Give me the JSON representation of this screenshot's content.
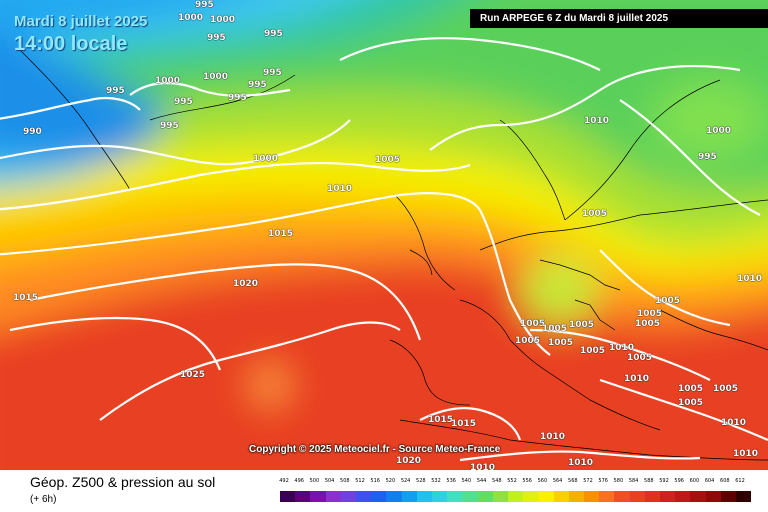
{
  "header": {
    "date": "Mardi 8 juillet 2025",
    "time": "14:00 locale",
    "run": "Run ARPEGE 6 Z du Mardi 8 juillet 2025"
  },
  "copyright": "Copyright © 2025 Meteociel.fr - Source Meteo-France",
  "footer": {
    "title": "Géop. Z500 & pression au sol",
    "subtitle": "(+ 6h)"
  },
  "colors": {
    "deep_blue": "#1f5fd6",
    "cyan": "#40c8f0",
    "green": "#5ad05a",
    "yellow": "#f5f000",
    "orange": "#ff8a20",
    "red": "#e83020"
  },
  "scale": {
    "ticks": [
      "492",
      "496",
      "500",
      "504",
      "508",
      "512",
      "516",
      "520",
      "524",
      "528",
      "532",
      "536",
      "540",
      "544",
      "548",
      "552",
      "556",
      "560",
      "564",
      "568",
      "572",
      "576",
      "580",
      "584",
      "588",
      "592",
      "596",
      "600",
      "604",
      "608",
      "612"
    ],
    "colors": [
      "#3a0050",
      "#5a0080",
      "#7a10b0",
      "#8a30d0",
      "#7040e0",
      "#4050f0",
      "#2060f0",
      "#1080f0",
      "#10a0f0",
      "#20c0f0",
      "#30d0e0",
      "#40e0c0",
      "#50e090",
      "#60e060",
      "#90e040",
      "#c0f020",
      "#e0f010",
      "#f8f000",
      "#f8d000",
      "#f8b000",
      "#f89000",
      "#f87020",
      "#f05020",
      "#e84020",
      "#e03020",
      "#d02020",
      "#c01818",
      "#a81010",
      "#900808",
      "#600000",
      "#300000"
    ]
  },
  "isobars": [
    {
      "v": "995",
      "x": 195,
      "y": -5
    },
    {
      "v": "1000",
      "x": 178,
      "y": 13
    },
    {
      "v": "1000",
      "x": 210,
      "y": 15
    },
    {
      "v": "995",
      "x": 207,
      "y": 33
    },
    {
      "v": "995",
      "x": 264,
      "y": 29
    },
    {
      "v": "990",
      "x": 23,
      "y": 127
    },
    {
      "v": "995",
      "x": 106,
      "y": 86
    },
    {
      "v": "1000",
      "x": 155,
      "y": 76
    },
    {
      "v": "1000",
      "x": 203,
      "y": 72
    },
    {
      "v": "995",
      "x": 174,
      "y": 97
    },
    {
      "v": "995",
      "x": 263,
      "y": 68
    },
    {
      "v": "995",
      "x": 248,
      "y": 80
    },
    {
      "v": "995",
      "x": 228,
      "y": 93
    },
    {
      "v": "995",
      "x": 160,
      "y": 121
    },
    {
      "v": "1000",
      "x": 253,
      "y": 154
    },
    {
      "v": "1005",
      "x": 375,
      "y": 155
    },
    {
      "v": "1010",
      "x": 327,
      "y": 184
    },
    {
      "v": "1015",
      "x": 268,
      "y": 229
    },
    {
      "v": "1020",
      "x": 233,
      "y": 279
    },
    {
      "v": "1015",
      "x": 13,
      "y": 293
    },
    {
      "v": "1025",
      "x": 180,
      "y": 370
    },
    {
      "v": "1010",
      "x": 584,
      "y": 116
    },
    {
      "v": "1000",
      "x": 706,
      "y": 126
    },
    {
      "v": "995",
      "x": 698,
      "y": 152
    },
    {
      "v": "1005",
      "x": 582,
      "y": 209
    },
    {
      "v": "1010",
      "x": 737,
      "y": 274
    },
    {
      "v": "1005",
      "x": 655,
      "y": 296
    },
    {
      "v": "1005",
      "x": 637,
      "y": 309
    },
    {
      "v": "1005",
      "x": 635,
      "y": 319
    },
    {
      "v": "1005",
      "x": 520,
      "y": 319
    },
    {
      "v": "1005",
      "x": 542,
      "y": 324
    },
    {
      "v": "1005",
      "x": 569,
      "y": 320
    },
    {
      "v": "1005",
      "x": 515,
      "y": 336
    },
    {
      "v": "1005",
      "x": 548,
      "y": 338
    },
    {
      "v": "1005",
      "x": 580,
      "y": 346
    },
    {
      "v": "1010",
      "x": 609,
      "y": 343
    },
    {
      "v": "1005",
      "x": 627,
      "y": 353
    },
    {
      "v": "1010",
      "x": 624,
      "y": 374
    },
    {
      "v": "1005",
      "x": 678,
      "y": 384
    },
    {
      "v": "1005",
      "x": 713,
      "y": 384
    },
    {
      "v": "1005",
      "x": 678,
      "y": 398
    },
    {
      "v": "1010",
      "x": 721,
      "y": 418
    },
    {
      "v": "1015",
      "x": 428,
      "y": 415
    },
    {
      "v": "1015",
      "x": 451,
      "y": 419
    },
    {
      "v": "1010",
      "x": 540,
      "y": 432
    },
    {
      "v": "1010",
      "x": 568,
      "y": 458
    },
    {
      "v": "1010",
      "x": 470,
      "y": 463
    },
    {
      "v": "1020",
      "x": 396,
      "y": 456
    },
    {
      "v": "1010",
      "x": 733,
      "y": 449
    }
  ]
}
